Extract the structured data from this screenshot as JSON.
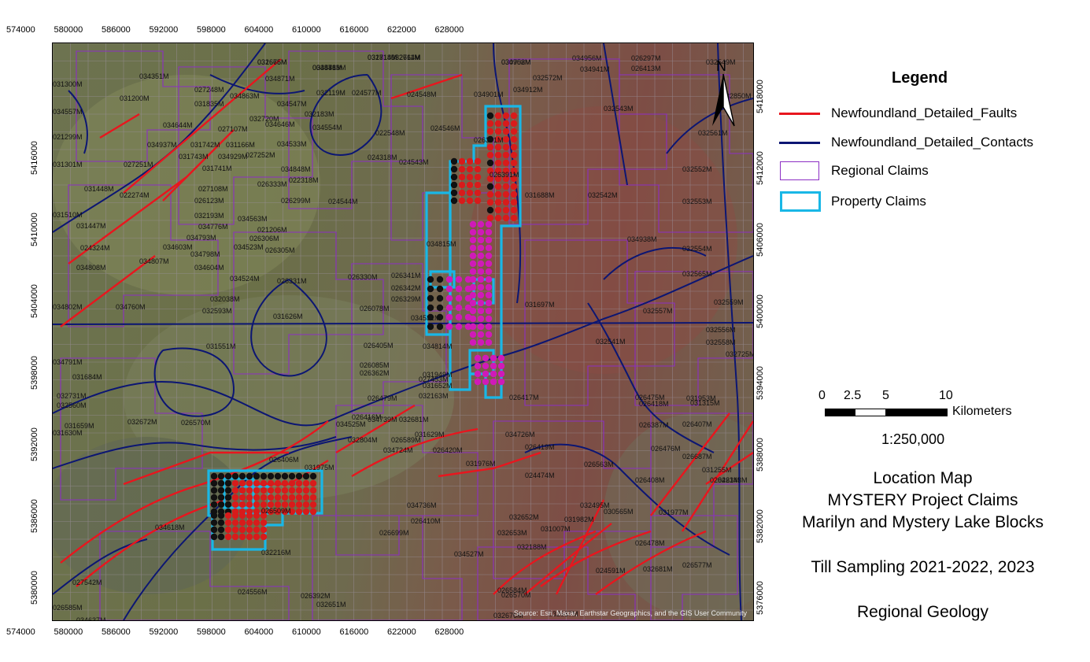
{
  "map": {
    "attribution": "Source: Esri, Maxar, Earthstar Geographics, and the GIS User Community",
    "colors": {
      "faults": "#e8161e",
      "contacts": "#0c1673",
      "regional_claims": "#8c2fc4",
      "property_claims": "#19b7e6",
      "sample_red": "#d81b1b",
      "sample_magenta": "#d01ab8",
      "sample_black": "#111111"
    },
    "x_ticks": [
      "574000",
      "580000",
      "586000",
      "592000",
      "598000",
      "604000",
      "610000",
      "616000",
      "622000",
      "628000"
    ],
    "y_ticks": [
      "5416000",
      "5410000",
      "5404000",
      "5398000",
      "5392000",
      "5386000",
      "5380000"
    ],
    "y_ticks_right": [
      "5418000",
      "5412000",
      "5406000",
      "5400000",
      "5394000",
      "5388000",
      "5382000",
      "5376000"
    ],
    "north_label": "N",
    "claim_labels": [
      "031666M",
      "034876M",
      "032718M",
      "032711M",
      "034908M",
      "034956M",
      "026297M",
      "032549M",
      "034883M",
      "034941M",
      "026413M",
      "031300M",
      "034351M",
      "034871M",
      "032572M",
      "027248M",
      "034912M",
      "031200M",
      "034863M",
      "032119M",
      "024577M",
      "024548M",
      "034901M",
      "032850M",
      "031835M",
      "034547M",
      "034557M",
      "032183M",
      "032720M",
      "032543M",
      "034644M",
      "027107M",
      "034646M",
      "034554M",
      "022548M",
      "024546M",
      "032561M",
      "021299M",
      "034937M",
      "031742M",
      "031166M",
      "034533M",
      "026301M",
      "031743M",
      "034929M",
      "027252M",
      "024318M",
      "024543M",
      "031301M",
      "027251M",
      "031741M",
      "034848M",
      "032552M",
      "031448M",
      "027108M",
      "026333M",
      "022318M",
      "026391M",
      "031688M",
      "032542M",
      "022274M",
      "026123M",
      "026299M",
      "024544M",
      "032553M",
      "031510M",
      "032193M",
      "034563M",
      "031447M",
      "034776M",
      "021206M",
      "026306M",
      "024324M",
      "034793M",
      "034523M",
      "034603M",
      "034798M",
      "026305M",
      "034815M",
      "034938M",
      "032554M",
      "034808M",
      "034807M",
      "034604M",
      "026330M",
      "026341M",
      "034524M",
      "026331M",
      "026342M",
      "032565M",
      "026329M",
      "032038M",
      "026078M",
      "034802M",
      "034760M",
      "032593M",
      "031626M",
      "034531M",
      "031697M",
      "032557M",
      "032559M",
      "026405M",
      "034814M",
      "032541M",
      "032556M",
      "032558M",
      "034791M",
      "031551M",
      "026085M",
      "031949M",
      "032725M",
      "031684M",
      "026362M",
      "027453M",
      "032731M",
      "031652M",
      "031953M",
      "026479M",
      "032163M",
      "026417M",
      "026475M",
      "032560M",
      "031315M",
      "026416M",
      "034525M",
      "034739M",
      "032681M",
      "026418M",
      "031659M",
      "032672M",
      "026570M",
      "031630M",
      "031629M",
      "034726M",
      "026387M",
      "032804M",
      "026589M",
      "034724M",
      "026420M",
      "026419M",
      "026407M",
      "026406M",
      "031975M",
      "026476M",
      "026687M",
      "026563M",
      "031255M",
      "026421M",
      "026408M",
      "031976M",
      "024474M",
      "026509M",
      "034736M",
      "032495M",
      "031977M",
      "026343M",
      "030565M",
      "026410M",
      "032652M",
      "034618M",
      "026699M",
      "031007M",
      "032216M",
      "031982M",
      "032653M",
      "026478M",
      "032188M",
      "034527M",
      "026577M",
      "024591M",
      "032681M",
      "027542M",
      "024556M",
      "026392M",
      "032651M",
      "026570M",
      "026584M",
      "026585M",
      "034637M",
      "032667M",
      "032676M",
      "032675M",
      "034541M",
      "031814M",
      "032664M",
      "030752M"
    ]
  },
  "legend": {
    "title": "Legend",
    "items": [
      {
        "label": "Newfoundland_Detailed_Faults",
        "type": "line",
        "color": "#e8161e"
      },
      {
        "label": "Newfoundland_Detailed_Contacts",
        "type": "line",
        "color": "#0c1673"
      },
      {
        "label": "Regional Claims",
        "type": "box",
        "color": "#8c2fc4"
      },
      {
        "label": "Property Claims",
        "type": "box",
        "color": "#19b7e6"
      }
    ]
  },
  "scale": {
    "labels": [
      "0",
      "2.5",
      "5",
      "10"
    ],
    "unit": "Kilometers",
    "ratio": "1:250,000"
  },
  "title_block": {
    "line1": "Location Map",
    "line2": "MYSTERY Project Claims",
    "line3": "Marilyn and Mystery Lake Blocks",
    "line4": "Till Sampling 2021-2022, 2023",
    "line5": "Regional Geology"
  }
}
